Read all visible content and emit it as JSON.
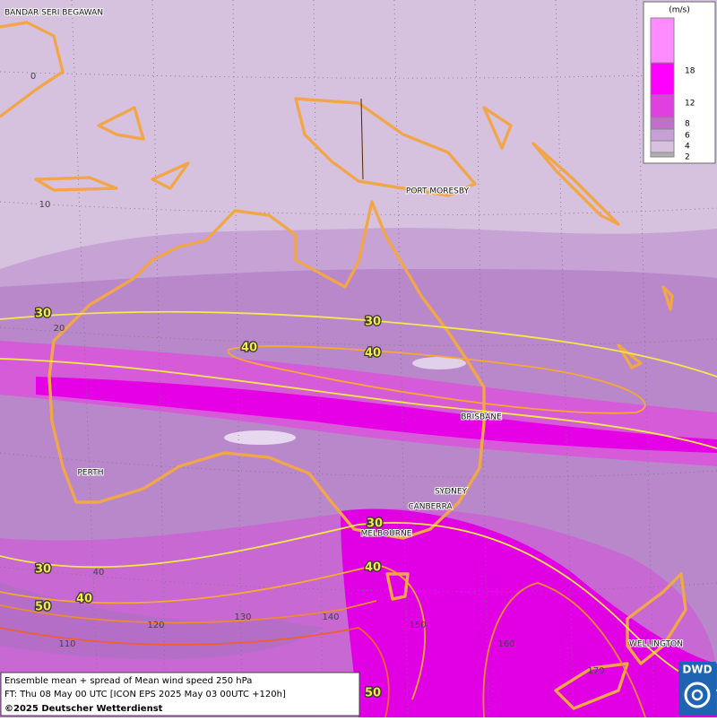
{
  "map": {
    "cities": [
      "BANDAR SERI BEGAWAN",
      "PORT MORESBY",
      "BRISBANE",
      "PERTH",
      "SYDNEY",
      "CANBERRA",
      "MELBOURNE",
      "WELLINGTON"
    ],
    "latitude_labels": [
      "0",
      "10",
      "20",
      "40"
    ],
    "longitude_labels": [
      "110",
      "120",
      "130",
      "140",
      "150",
      "160",
      "170"
    ],
    "contour_labels": [
      "30",
      "30",
      "40",
      "40",
      "30",
      "40",
      "30",
      "40",
      "50",
      "50"
    ],
    "legend": {
      "unit": "(m/s)",
      "levels": [
        "18",
        "12",
        "8",
        "6",
        "4",
        "2"
      ]
    },
    "info": {
      "line1": "Ensemble mean + spread of Mean wind speed 250 hPa",
      "line2": "FT: Thu 08 May 00 UTC [ICON EPS 2025 May 03 00UTC +120h]",
      "copyright": "©2025 Deutscher Wetterdienst"
    },
    "logo": "DWD"
  }
}
